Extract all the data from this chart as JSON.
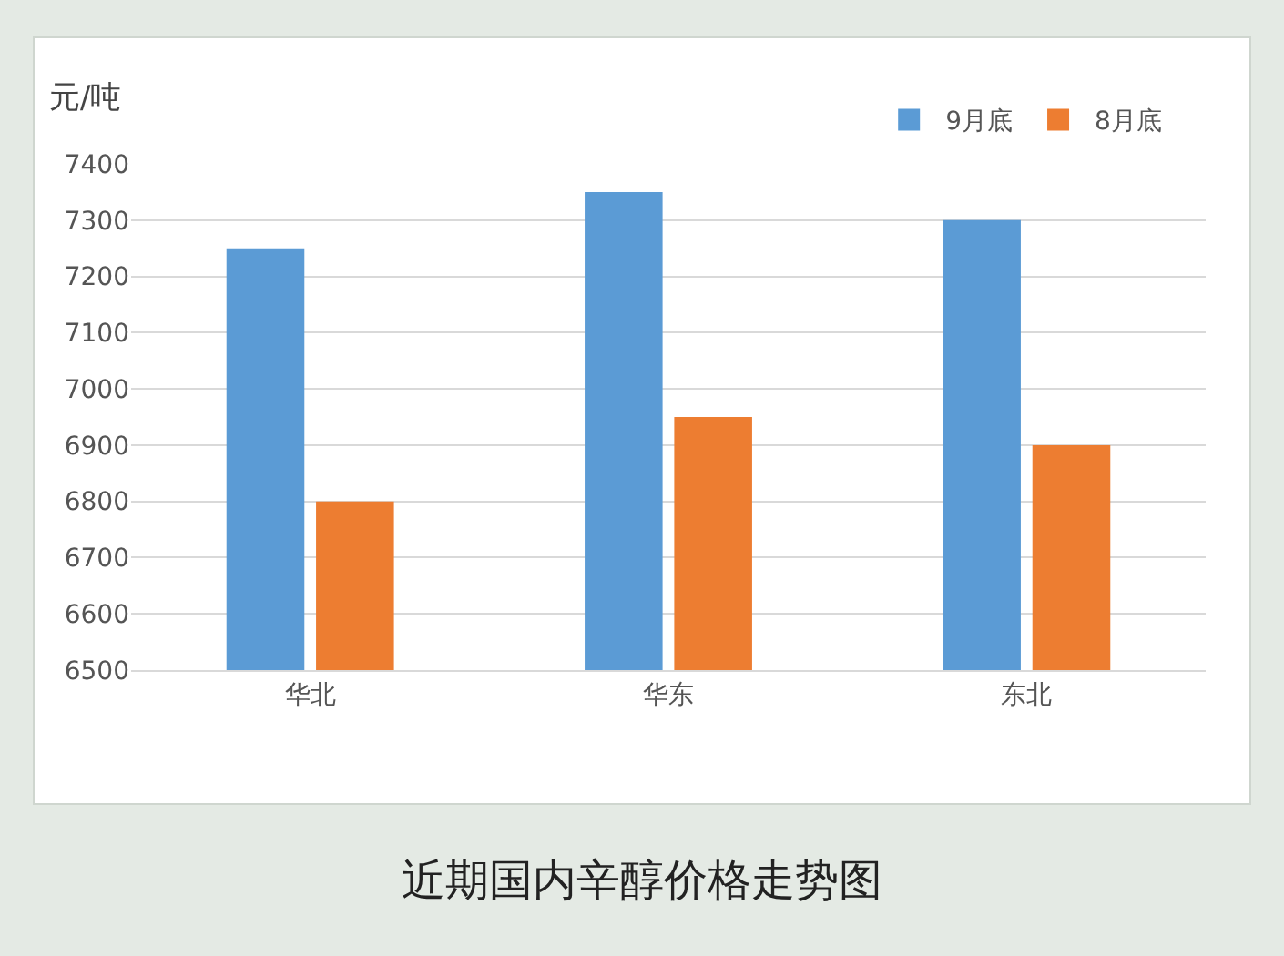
{
  "chart_data": {
    "type": "bar",
    "title": "近期国内辛醇价格走势图",
    "ylabel": "元/吨",
    "categories": [
      "华北",
      "华东",
      "东北"
    ],
    "series": [
      {
        "name": "9月底",
        "color": "#5b9bd5",
        "values": [
          7250,
          7350,
          7300
        ]
      },
      {
        "name": "8月底",
        "color": "#ed7d31",
        "values": [
          6800,
          6950,
          6900
        ]
      }
    ],
    "ylim": [
      6500,
      7400
    ],
    "yticks": [
      6500,
      6600,
      6700,
      6800,
      6900,
      7000,
      7100,
      7200,
      7300,
      7400
    ],
    "grid": "y",
    "legend": "top right"
  }
}
